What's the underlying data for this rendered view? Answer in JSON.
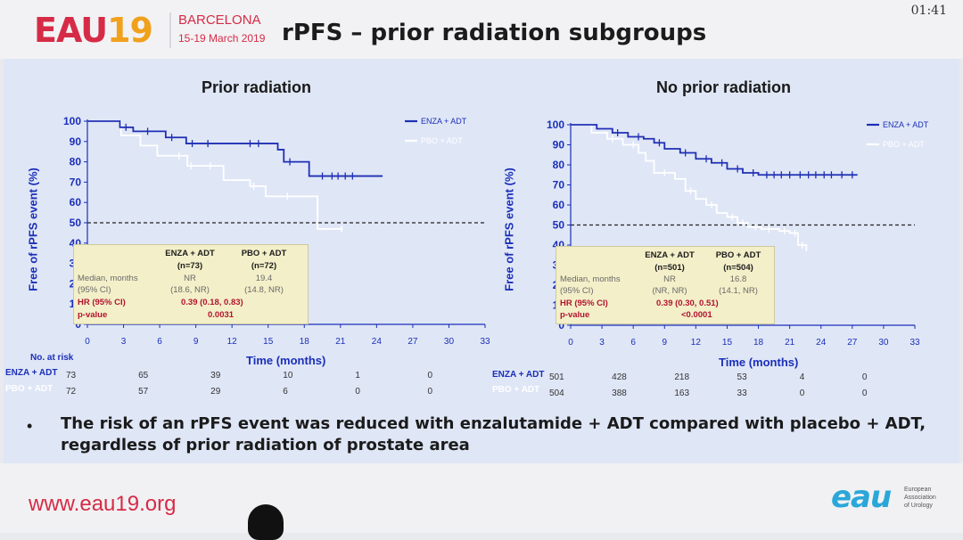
{
  "header": {
    "logo_eau": "EAU",
    "logo_year": "19",
    "logo_city": "BARCELONA",
    "logo_dates": "15-19 March 2019",
    "title": "rPFS – prior radiation subgroups",
    "clock": "01:41"
  },
  "chart_data": [
    {
      "type": "line",
      "title": "Prior radiation",
      "xlabel": "Time (months)",
      "ylabel": "Free of rPFS event (%)",
      "xlim": [
        0,
        33
      ],
      "ylim": [
        0,
        100
      ],
      "x_ticks": [
        0,
        3,
        6,
        9,
        12,
        15,
        18,
        21,
        24,
        27,
        30,
        33
      ],
      "y_ticks": [
        0,
        10,
        20,
        30,
        40,
        50,
        60,
        70,
        80,
        90,
        100
      ],
      "reference_line_y": 50,
      "legend_position": "top-right",
      "series": [
        {
          "name": "ENZA + ADT",
          "color": "#1f2fb4",
          "x": [
            0,
            2.7,
            3.8,
            6.5,
            8.2,
            15.8,
            16.3,
            18.4,
            24.5
          ],
          "y": [
            100,
            97,
            95,
            92,
            89,
            86,
            80,
            73,
            73
          ],
          "censored_x": [
            3.2,
            5,
            7,
            8.7,
            10,
            13.5,
            14.2,
            16.8,
            19.5,
            20.3,
            20.8,
            21.4,
            22
          ]
        },
        {
          "name": "PBO + ADT",
          "color": "#ffffff",
          "x": [
            0,
            2.8,
            4.4,
            5.8,
            8.3,
            11.3,
            13.5,
            14.8,
            19.1,
            21.2
          ],
          "y": [
            100,
            93,
            88,
            83,
            78,
            71,
            68,
            63,
            47,
            47
          ],
          "censored_x": [
            7.6,
            8.6,
            10.2,
            13.8,
            16.6,
            21.1
          ]
        }
      ],
      "stats": {
        "headers": [
          "ENZA + ADT",
          "PBO + ADT"
        ],
        "n": [
          "(n=73)",
          "(n=72)"
        ],
        "rows": [
          {
            "label": "Median, months",
            "values": [
              "NR",
              "19.4"
            ]
          },
          {
            "label": "(95% CI)",
            "values": [
              "(18.6, NR)",
              "(14.8, NR)"
            ]
          }
        ],
        "hr_label": "HR (95% CI)",
        "hr_value": "0.39 (0.18, 0.83)",
        "p_label": "p-value",
        "p_value": "0.0031"
      },
      "at_risk": {
        "title": "No. at risk",
        "rows": [
          {
            "name": "ENZA + ADT",
            "values": [
              "73",
              "65",
              "39",
              "10",
              "1",
              "0"
            ]
          },
          {
            "name": "PBO + ADT",
            "values": [
              "72",
              "57",
              "29",
              "6",
              "0",
              "0"
            ]
          }
        ],
        "at_months": [
          0,
          6,
          12,
          18,
          24,
          30
        ]
      }
    },
    {
      "type": "line",
      "title": "No prior radiation",
      "xlabel": "Time (months)",
      "ylabel": "Free of rPFS event (%)",
      "xlim": [
        0,
        33
      ],
      "ylim": [
        0,
        100
      ],
      "x_ticks": [
        0,
        3,
        6,
        9,
        12,
        15,
        18,
        21,
        24,
        27,
        30,
        33
      ],
      "y_ticks": [
        0,
        10,
        20,
        30,
        40,
        50,
        60,
        70,
        80,
        90,
        100
      ],
      "reference_line_y": 50,
      "legend_position": "top-right",
      "series": [
        {
          "name": "ENZA + ADT",
          "color": "#1f2fb4",
          "x": [
            0,
            2.5,
            4,
            5.5,
            7,
            8,
            9,
            10.5,
            12,
            13.5,
            15,
            16.5,
            18,
            27.5
          ],
          "y": [
            100,
            98,
            96,
            94,
            93,
            91,
            88,
            86,
            83,
            81,
            78,
            76,
            75,
            75
          ],
          "censored_x": [
            4.5,
            6.5,
            8.5,
            11,
            13,
            14.5,
            16,
            17.5,
            18.8,
            19.5,
            20.2,
            21,
            22,
            22.8,
            23.5,
            24.3,
            25,
            26,
            27
          ]
        },
        {
          "name": "PBO + ADT",
          "color": "#ffffff",
          "x": [
            0,
            2,
            3.5,
            5,
            6.5,
            7.2,
            8,
            10,
            11,
            12,
            13,
            14,
            15,
            16,
            17,
            18.3,
            20,
            21,
            21.8,
            22.6
          ],
          "y": [
            100,
            96,
            93,
            90,
            86,
            82,
            76,
            73,
            67,
            63,
            60,
            56,
            54,
            51,
            49,
            48,
            47,
            46,
            40,
            37
          ],
          "censored_x": [
            4,
            6,
            9,
            11.5,
            13.5,
            15.5,
            16.5,
            17.7,
            19,
            20.5,
            21.5,
            22.2
          ]
        }
      ],
      "stats": {
        "headers": [
          "ENZA + ADT",
          "PBO + ADT"
        ],
        "n": [
          "(n=501)",
          "(n=504)"
        ],
        "rows": [
          {
            "label": "Median, months",
            "values": [
              "NR",
              "16.8"
            ]
          },
          {
            "label": "(95% CI)",
            "values": [
              "(NR, NR)",
              "(14.1, NR)"
            ]
          }
        ],
        "hr_label": "HR (95% CI)",
        "hr_value": "0.39 (0.30, 0.51)",
        "p_label": "p-value",
        "p_value": "<0.0001"
      },
      "at_risk": {
        "rows": [
          {
            "name": "ENZA + ADT",
            "values": [
              "501",
              "428",
              "218",
              "53",
              "4",
              "0"
            ]
          },
          {
            "name": "PBO + ADT",
            "values": [
              "504",
              "388",
              "163",
              "33",
              "0",
              "0"
            ]
          }
        ],
        "at_months": [
          0,
          6,
          12,
          18,
          24,
          30
        ]
      }
    }
  ],
  "bullet": "The risk of an rPFS event was reduced with enzalutamide + ADT compared with placebo + ADT, regardless of prior radiation of prostate area",
  "footer": {
    "url": "www.eau19.org",
    "eau_mark": "eau",
    "eau_org_lines": [
      "European",
      "Association",
      "of Urology"
    ]
  },
  "colors": {
    "brand_red": "#d62b46",
    "brand_orange": "#f0a11c",
    "axis_blue": "#1a2fb8",
    "enza_blue": "#1f2fb4",
    "pbo_white": "#ffffff"
  }
}
